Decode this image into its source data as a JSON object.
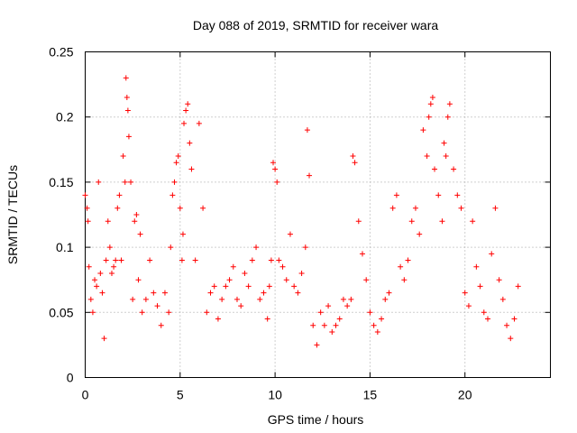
{
  "chart_data": {
    "type": "scatter",
    "title": "Day 088 of 2019, SRMTID for receiver wara",
    "xlabel": "GPS time / hours",
    "ylabel": "SRMTID / TECUs",
    "xlim": [
      0,
      24.5
    ],
    "ylim": [
      0,
      0.25
    ],
    "xticks": [
      0,
      5,
      10,
      15,
      20
    ],
    "xtick_labels": [
      "0",
      "5",
      "10",
      "15",
      "20"
    ],
    "yticks": [
      0,
      0.05,
      0.1,
      0.15,
      0.2,
      0.25
    ],
    "ytick_labels": [
      "0",
      "0.05",
      "0.1",
      "0.15",
      "0.2",
      "0.25"
    ],
    "grid": true,
    "marker": "plus",
    "color": "#ff0000",
    "series": [
      {
        "name": "SRMTID",
        "x": [
          0.0,
          0.1,
          0.15,
          0.2,
          0.3,
          0.4,
          0.5,
          0.6,
          0.7,
          0.8,
          0.9,
          1.0,
          1.1,
          1.2,
          1.3,
          1.4,
          1.5,
          1.6,
          1.7,
          1.8,
          1.9,
          2.0,
          2.1,
          2.15,
          2.2,
          2.25,
          2.3,
          2.4,
          2.5,
          2.6,
          2.7,
          2.8,
          2.9,
          3.0,
          3.2,
          3.4,
          3.6,
          3.8,
          4.0,
          4.2,
          4.4,
          4.5,
          4.6,
          4.7,
          4.8,
          4.9,
          5.0,
          5.1,
          5.15,
          5.2,
          5.3,
          5.4,
          5.5,
          5.6,
          5.8,
          6.0,
          6.2,
          6.4,
          6.6,
          6.8,
          7.0,
          7.2,
          7.4,
          7.6,
          7.8,
          8.0,
          8.2,
          8.4,
          8.6,
          8.8,
          9.0,
          9.2,
          9.4,
          9.6,
          9.7,
          9.8,
          9.9,
          10.0,
          10.1,
          10.2,
          10.4,
          10.6,
          10.8,
          11.0,
          11.2,
          11.4,
          11.6,
          11.7,
          11.8,
          12.0,
          12.2,
          12.4,
          12.6,
          12.8,
          13.0,
          13.2,
          13.4,
          13.6,
          13.8,
          14.0,
          14.1,
          14.2,
          14.4,
          14.6,
          14.8,
          15.0,
          15.2,
          15.4,
          15.6,
          15.8,
          16.0,
          16.2,
          16.4,
          16.6,
          16.8,
          17.0,
          17.2,
          17.4,
          17.6,
          17.8,
          18.0,
          18.1,
          18.2,
          18.3,
          18.4,
          18.6,
          18.8,
          18.9,
          19.0,
          19.1,
          19.2,
          19.4,
          19.6,
          19.8,
          20.0,
          20.2,
          20.4,
          20.6,
          20.8,
          21.0,
          21.2,
          21.4,
          21.6,
          21.8,
          22.0,
          22.2,
          22.4,
          22.6,
          22.8
        ],
        "y": [
          0.14,
          0.13,
          0.12,
          0.085,
          0.06,
          0.05,
          0.075,
          0.07,
          0.15,
          0.08,
          0.065,
          0.03,
          0.09,
          0.12,
          0.1,
          0.08,
          0.085,
          0.09,
          0.13,
          0.14,
          0.09,
          0.17,
          0.15,
          0.23,
          0.215,
          0.205,
          0.185,
          0.15,
          0.06,
          0.12,
          0.125,
          0.075,
          0.11,
          0.05,
          0.06,
          0.09,
          0.065,
          0.055,
          0.04,
          0.065,
          0.05,
          0.1,
          0.14,
          0.15,
          0.165,
          0.17,
          0.13,
          0.09,
          0.11,
          0.195,
          0.205,
          0.21,
          0.18,
          0.16,
          0.09,
          0.195,
          0.13,
          0.05,
          0.065,
          0.07,
          0.045,
          0.06,
          0.07,
          0.075,
          0.085,
          0.06,
          0.055,
          0.08,
          0.07,
          0.09,
          0.1,
          0.06,
          0.065,
          0.045,
          0.07,
          0.09,
          0.165,
          0.16,
          0.15,
          0.09,
          0.085,
          0.075,
          0.11,
          0.07,
          0.065,
          0.08,
          0.1,
          0.19,
          0.155,
          0.04,
          0.025,
          0.05,
          0.04,
          0.055,
          0.035,
          0.04,
          0.045,
          0.06,
          0.055,
          0.06,
          0.17,
          0.165,
          0.12,
          0.095,
          0.075,
          0.05,
          0.04,
          0.035,
          0.045,
          0.06,
          0.065,
          0.13,
          0.14,
          0.085,
          0.075,
          0.09,
          0.12,
          0.13,
          0.11,
          0.19,
          0.17,
          0.2,
          0.21,
          0.215,
          0.16,
          0.14,
          0.12,
          0.18,
          0.17,
          0.2,
          0.21,
          0.16,
          0.14,
          0.13,
          0.065,
          0.055,
          0.12,
          0.085,
          0.07,
          0.05,
          0.045,
          0.095,
          0.13,
          0.075,
          0.06,
          0.04,
          0.03,
          0.045,
          0.07
        ]
      }
    ]
  }
}
